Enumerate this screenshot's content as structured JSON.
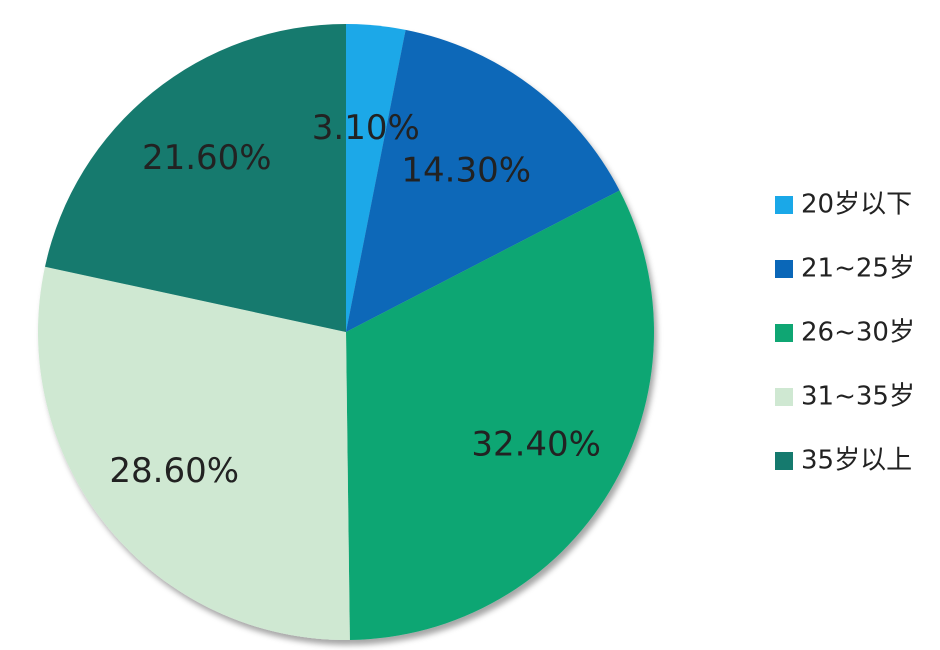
{
  "chart_data": {
    "type": "pie",
    "categories": [
      "20岁以下",
      "21~25岁",
      "26~30岁",
      "31~35岁",
      "35岁以上"
    ],
    "values": [
      3.1,
      14.3,
      32.4,
      28.6,
      21.6
    ],
    "value_labels": [
      "3.10%",
      "14.30%",
      "32.40%",
      "28.60%",
      "21.60%"
    ],
    "colors": [
      "#1aa8e8",
      "#0a67b8",
      "#0fa673",
      "#cfe8d2",
      "#157a6e"
    ],
    "legend": "right"
  }
}
